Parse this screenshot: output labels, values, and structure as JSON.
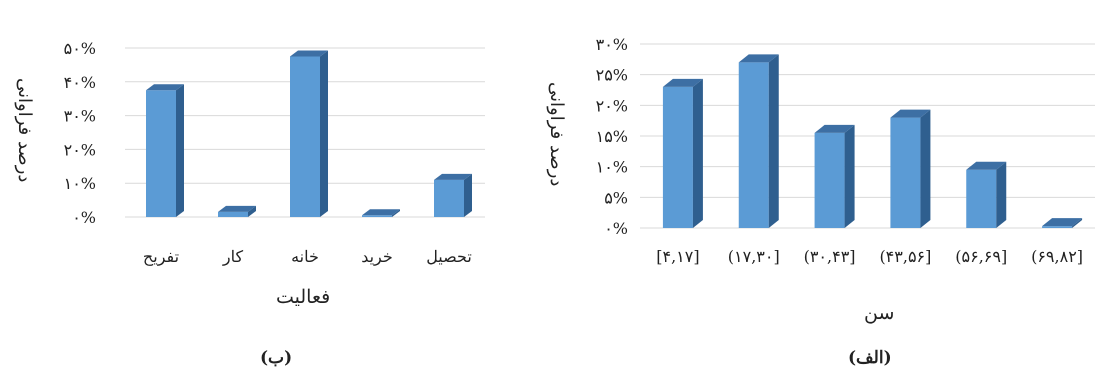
{
  "chart_data": [
    {
      "panel": "(ب)",
      "type": "bar",
      "xlabel": "فعالیت",
      "ylabel": "درصد فراوانی",
      "ylim": [
        0,
        50
      ],
      "yticks": [
        "۰%",
        "۱۰%",
        "۲۰%",
        "۳۰%",
        "۴۰%",
        "۵۰%"
      ],
      "categories": [
        "تفریح",
        "کار",
        "خانه",
        "خرید",
        "تحصیل"
      ],
      "values": [
        37.5,
        1.5,
        47.5,
        0.5,
        11
      ],
      "grid": true,
      "legend": "none"
    },
    {
      "panel": "(الف)",
      "type": "bar",
      "xlabel": "سن",
      "ylabel": "درصد فراوانی",
      "ylim": [
        0,
        30
      ],
      "yticks": [
        "۰%",
        "۵%",
        "۱۰%",
        "۱۵%",
        "۲۰%",
        "۲۵%",
        "۳۰%"
      ],
      "categories": [
        "[۴,۱۷]",
        "(۱۷,۳۰]",
        "(۳۰,۴۳]",
        "(۴۳,۵۶]",
        "(۵۶,۶۹]",
        "(۶۹,۸۲]"
      ],
      "values": [
        23,
        27,
        15.5,
        18,
        9.5,
        0.3
      ],
      "grid": true,
      "legend": "none"
    }
  ],
  "colors": {
    "bar_front": "#5b9bd5",
    "bar_side": "#2f5f8f",
    "bar_top": "#3d6fa4",
    "grid": "#d9d9d9"
  }
}
